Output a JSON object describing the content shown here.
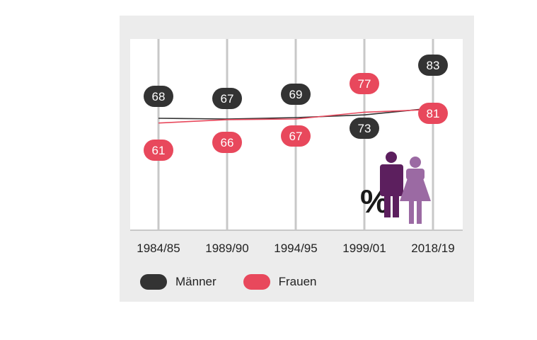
{
  "chart_data": {
    "type": "line",
    "categories": [
      "1984/85",
      "1989/90",
      "1994/95",
      "1999/01",
      "2018/19"
    ],
    "series": [
      {
        "name": "Männer",
        "values": [
          68,
          67,
          69,
          73,
          83
        ]
      },
      {
        "name": "Frauen",
        "values": [
          61,
          66,
          67,
          77,
          81
        ]
      }
    ],
    "unit_symbol": "%",
    "legend_position": "bottom",
    "colors": {
      "maenner": "#333333",
      "frauen": "#e8485c",
      "icon_man": "#5c1f5e",
      "icon_woman": "#9b6aa3",
      "grid": "#c8c8c8"
    }
  }
}
